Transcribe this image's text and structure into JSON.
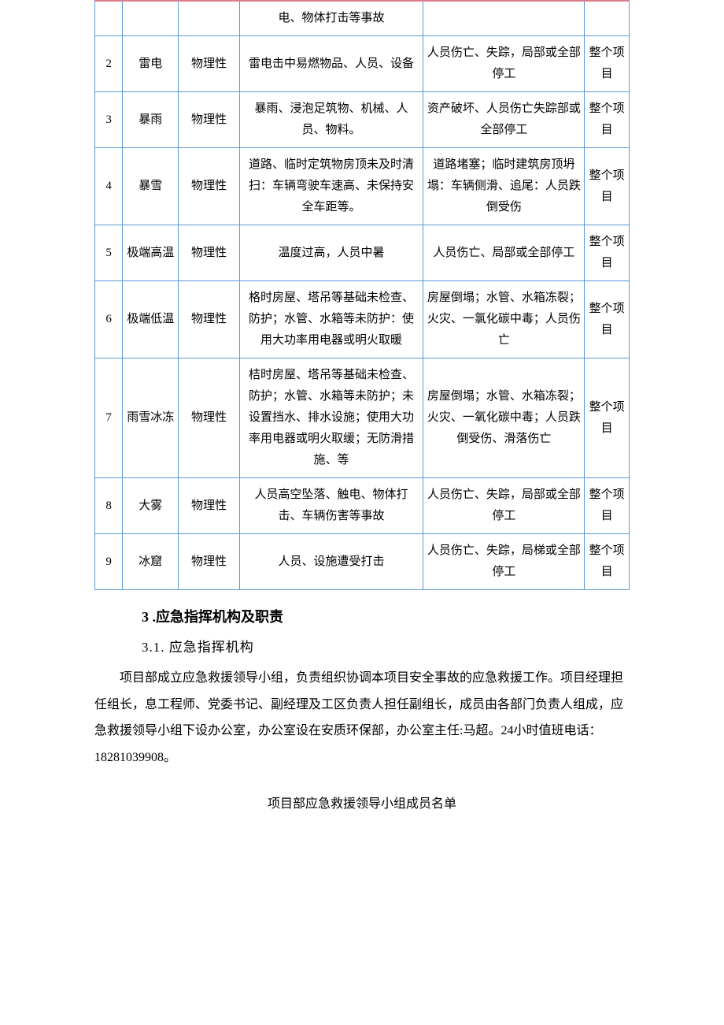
{
  "table": {
    "columns_width": [
      "5%",
      "10%",
      "11%",
      "33%",
      "29%",
      "8%"
    ],
    "border_color": "#5b9bd5",
    "top_border_color": "#dc7d8e",
    "rows": [
      {
        "cells": [
          "",
          "",
          "",
          "电、物体打击等事故",
          "",
          ""
        ]
      },
      {
        "cells": [
          "2",
          "雷电",
          "物理性",
          "雷电击中易燃物品、人员、设备",
          "人员伤亡、失踪，局部或全部停工",
          "整个项目"
        ]
      },
      {
        "cells": [
          "3",
          "暴雨",
          "物理性",
          "暴雨、浸泡足筑物、机械、人员、物料。",
          "资产破坏、人员伤亡失踪部或全部停工",
          "整个项目"
        ]
      },
      {
        "cells": [
          "4",
          "暴雪",
          "物理性",
          "道路、临时定筑物房顶未及时清扫：车辆弯驶车速高、未保持安全车距等。",
          "道路堵塞；临时建筑房顶坍塌：车辆侧滑、追尾：人员跌倒受伤",
          "整个项目"
        ]
      },
      {
        "cells": [
          "5",
          "极端高温",
          "物理性",
          "温度过高，人员中暑",
          "人员伤亡、局部或全部停工",
          "整个项目"
        ]
      },
      {
        "cells": [
          "6",
          "极端低温",
          "物理性",
          "格时房屋、塔吊等基础未检查、防护；水管、水箱等未防护：使用大功率用电器或明火取暖",
          "房屋倒塌；水管、水箱冻裂；火灾、一氯化碳中毒；人员伤亡",
          "整个项目"
        ]
      },
      {
        "cells": [
          "7",
          "雨雪冰冻",
          "物理性",
          "桔时房屋、塔吊等基础未检查、防护；水管、水箱等未防护；未设置挡水、排水设施；使用大功率用电器或明火取缓；无防滑措施、等",
          "房屋倒塌；水管、水箱冻裂；火灾、一氧化碳中毒；人员跌倒受伤、滑落伤亡",
          "整个项目"
        ]
      },
      {
        "cells": [
          "8",
          "大雾",
          "物理性",
          "人员高空坠落、触电、物体打击、车辆伤害等事故",
          "人员伤亡、失踪，局部或全部停工",
          "整个项目"
        ]
      },
      {
        "cells": [
          "9",
          "冰窟",
          "物理性",
          "人员、设施遭受打击",
          "人员伤亡、失踪，局梯或全部停工",
          "整个项目"
        ]
      }
    ]
  },
  "section3_title": "3 .应急指挥机构及职责",
  "section31_title": "3.1.  应急指挥机构",
  "para1": "项目部成立应急救援领导小组，负责组织协调本项目安全事故的应急救援工作。项目经理担任组长，息工程师、党委书记、副经理及工区负责人担任副组长，成员由各部门负责人组成，应急救援领导小组下设办公室，办公室设在安质环保部，办公室主任:马超。24小时值班电话：18281039908。",
  "caption": "项目部应急救援领导小组成员名单",
  "style": {
    "font_family": "SimSun",
    "body_fontsize": 16,
    "cell_fontsize": 15,
    "line_height_body": 2.1,
    "line_height_cell": 1.8,
    "text_color": "#000000",
    "background_color": "#ffffff"
  }
}
